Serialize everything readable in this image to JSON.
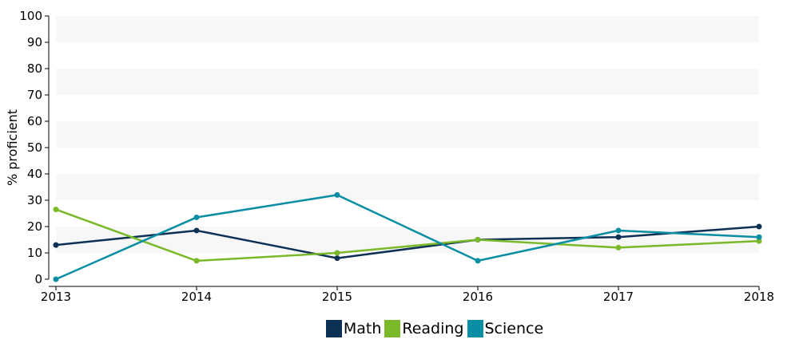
{
  "chart_data": {
    "type": "line",
    "ylabel": "% proficient",
    "xlabel": "",
    "x": [
      "2013",
      "2014",
      "2015",
      "2016",
      "2017",
      "2018"
    ],
    "ylim": [
      0,
      100
    ],
    "yticks": [
      "0",
      "10",
      "20",
      "30",
      "40",
      "50",
      "60",
      "70",
      "80",
      "90",
      "100"
    ],
    "series": [
      {
        "name": "Math",
        "color": "#0d3155",
        "values": [
          13,
          18.5,
          8,
          15,
          16,
          20
        ]
      },
      {
        "name": "Reading",
        "color": "#7ab929",
        "values": [
          26.5,
          7,
          10,
          15,
          12,
          14.5
        ]
      },
      {
        "name": "Science",
        "color": "#0a8ea3",
        "values": [
          0,
          23.5,
          32,
          7,
          18.5,
          16
        ]
      }
    ],
    "legend_position": "bottom",
    "banded_background": true
  }
}
